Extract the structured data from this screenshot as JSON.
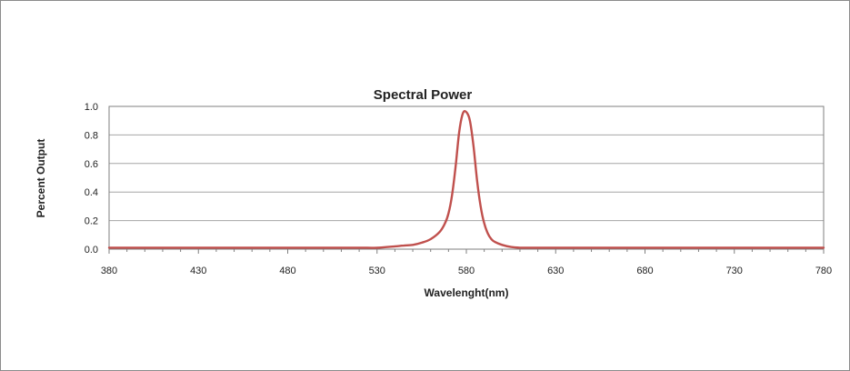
{
  "chart_data": {
    "type": "line",
    "title": "Spectral Power",
    "xlabel": "Wavelenght(nm)",
    "ylabel": "Percent Output",
    "xlim": [
      380,
      780
    ],
    "ylim": [
      0,
      1.0
    ],
    "x_ticks": [
      380,
      430,
      480,
      530,
      580,
      630,
      680,
      730,
      780
    ],
    "y_ticks": [
      0.0,
      0.2,
      0.4,
      0.6,
      0.8,
      1.0
    ],
    "y_tick_labels": [
      "0.0",
      "0.2",
      "0.4",
      "0.6",
      "0.8",
      "1.0"
    ],
    "grid": "horizontal",
    "legend": "none",
    "colors": {
      "line": "#c0504d",
      "grid": "#a6a6a6",
      "axis": "#7f7f7f"
    },
    "series": [
      {
        "x": [
          380,
          400,
          420,
          440,
          460,
          480,
          500,
          520,
          530,
          540,
          545,
          550,
          555,
          560,
          565,
          568,
          570,
          572,
          574,
          576,
          578,
          580,
          582,
          584,
          586,
          588,
          590,
          592,
          594,
          596,
          600,
          605,
          610,
          620,
          640,
          680,
          720,
          760,
          780
        ],
        "y": [
          0.01,
          0.01,
          0.01,
          0.01,
          0.01,
          0.01,
          0.01,
          0.01,
          0.01,
          0.02,
          0.025,
          0.03,
          0.045,
          0.07,
          0.12,
          0.18,
          0.25,
          0.38,
          0.58,
          0.82,
          0.95,
          0.96,
          0.9,
          0.72,
          0.48,
          0.3,
          0.18,
          0.11,
          0.07,
          0.05,
          0.03,
          0.015,
          0.01,
          0.01,
          0.01,
          0.01,
          0.01,
          0.01,
          0.01
        ]
      }
    ]
  }
}
